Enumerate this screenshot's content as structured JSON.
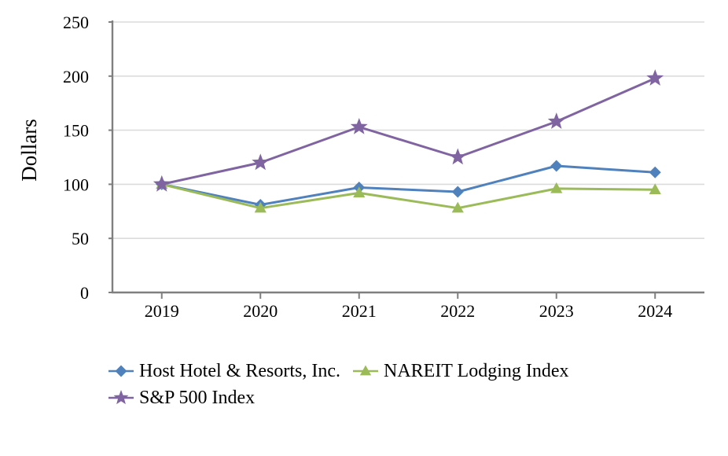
{
  "page": {
    "background": "#ffffff"
  },
  "chart_data": {
    "type": "line",
    "title": "",
    "xlabel": "",
    "ylabel": "Dollars",
    "categories": [
      "2019",
      "2020",
      "2021",
      "2022",
      "2023",
      "2024"
    ],
    "series": [
      {
        "name": "Host Hotel & Resorts, Inc.",
        "color": "#4f81bd",
        "marker": "diamond",
        "values": [
          100,
          81,
          97,
          93,
          117,
          111
        ]
      },
      {
        "name": "NAREIT Lodging Index",
        "color": "#9bbb59",
        "marker": "triangle",
        "values": [
          100,
          78,
          92,
          78,
          96,
          95
        ]
      },
      {
        "name": "S&P 500 Index",
        "color": "#8064a2",
        "marker": "star",
        "values": [
          100,
          120,
          153,
          125,
          158,
          198
        ]
      }
    ],
    "y_ticks": [
      0,
      50,
      100,
      150,
      200,
      250
    ],
    "ylim": [
      0,
      250
    ],
    "grid": true,
    "legend_position": "bottom-left",
    "legend_rows": [
      [
        0,
        1
      ],
      [
        2
      ]
    ],
    "axis_color": "#7f7f7f",
    "grid_color": "#dcdcdc",
    "text_color": "#000000"
  }
}
